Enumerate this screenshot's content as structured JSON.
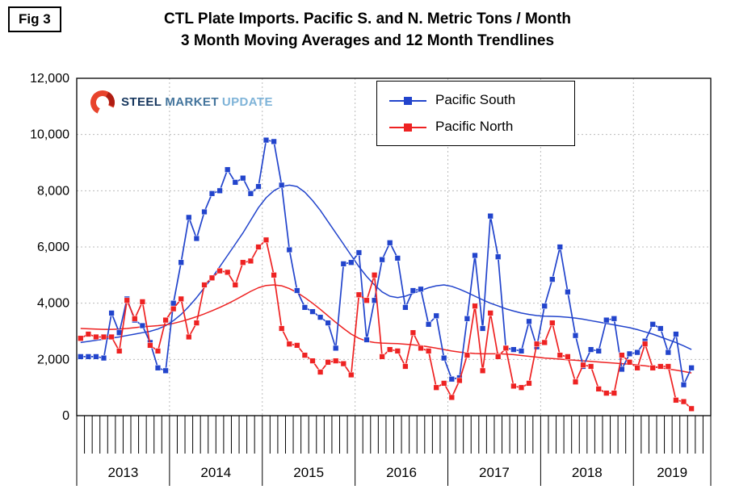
{
  "fig_label": "Fig 3",
  "title_line1": "CTL Plate Imports. Pacific S. and N. Metric Tons / Month",
  "title_line2": "3 Month Moving Averages and 12 Month Trendlines",
  "logo": {
    "steel": "STEEL",
    "market": "MARKET",
    "update": "UPDATE",
    "steel_color": "#17375E",
    "market_color": "#43749c",
    "update_color": "#7EB3D8",
    "icon_color": "#E8432C"
  },
  "chart_data": {
    "type": "line",
    "title": "CTL Plate Imports. Pacific S. and N. Metric Tons / Month",
    "subtitle": "3 Month Moving Averages and 12 Month Trendlines",
    "x_start": "Jan 2013",
    "x_end": "Aug 2019",
    "domain_months": 82,
    "years": [
      "2013",
      "2014",
      "2015",
      "2016",
      "2017",
      "2018",
      "2019"
    ],
    "ylim": [
      0,
      12000
    ],
    "y_tick_values": [
      0,
      2000,
      4000,
      6000,
      8000,
      10000,
      12000
    ],
    "y_tick_labels": [
      "0",
      "2,000",
      "4,000",
      "6,000",
      "8,000",
      "10,000",
      "12,000"
    ],
    "grid": {
      "horizontal": true,
      "vertical_year_lines": true,
      "style": "dotted"
    },
    "legend_position": "top-center",
    "legend": [
      "Pacific South",
      "Pacific North"
    ],
    "series": [
      {
        "name": "Pacific South",
        "kind": "3 month moving average",
        "color": "#2244CC",
        "marker": "square",
        "values": [
          2100,
          2100,
          2100,
          2050,
          3650,
          2950,
          4150,
          3400,
          3200,
          2600,
          1700,
          1600,
          4000,
          5450,
          7050,
          6300,
          7250,
          7900,
          8000,
          8750,
          8300,
          8450,
          7900,
          8150,
          9800,
          9750,
          8200,
          5900,
          4450,
          3850,
          3700,
          3500,
          3300,
          2400,
          5400,
          5450,
          5800,
          2700,
          4100,
          5550,
          6150,
          5600,
          3850,
          4450,
          4500,
          3250,
          3550,
          2050,
          1300,
          1350,
          3450,
          5700,
          3100,
          7100,
          5650,
          2400,
          2350,
          2300,
          3350,
          2450,
          3900,
          4850,
          6000,
          4400,
          2850,
          1750,
          2350,
          2300,
          3400,
          3450,
          1650,
          2200,
          2250,
          2650,
          3250,
          3100,
          2250,
          2900,
          1100,
          1700
        ]
      },
      {
        "name": "Pacific North",
        "kind": "3 month moving average",
        "color": "#EE2222",
        "marker": "square",
        "values": [
          2750,
          2900,
          2800,
          2800,
          2800,
          2300,
          4100,
          3450,
          4050,
          2500,
          2300,
          3400,
          3800,
          4150,
          2800,
          3300,
          4650,
          4900,
          5150,
          5100,
          4650,
          5450,
          5500,
          6000,
          6250,
          5000,
          3100,
          2550,
          2500,
          2150,
          1950,
          1550,
          1900,
          1950,
          1850,
          1450,
          4300,
          4100,
          5000,
          2100,
          2350,
          2300,
          1750,
          2950,
          2400,
          2300,
          1000,
          1150,
          650,
          1250,
          2150,
          3900,
          1600,
          3650,
          2100,
          2400,
          1050,
          1000,
          1150,
          2550,
          2600,
          3300,
          2150,
          2100,
          1200,
          1800,
          1750,
          950,
          800,
          800,
          2150,
          1900,
          1700,
          2550,
          1700,
          1750,
          1750,
          550,
          500,
          250
        ]
      },
      {
        "name": "Pacific South Trendline",
        "kind": "12 month trendline",
        "color": "#2244CC",
        "marker": "none",
        "values": [
          2600,
          2640,
          2680,
          2720,
          2760,
          2800,
          2850,
          2900,
          2950,
          3000,
          3080,
          3200,
          3380,
          3600,
          3880,
          4200,
          4550,
          4900,
          5300,
          5700,
          6100,
          6500,
          6950,
          7400,
          7750,
          8000,
          8150,
          8200,
          8150,
          7950,
          7650,
          7300,
          6900,
          6500,
          6100,
          5700,
          5300,
          4950,
          4650,
          4400,
          4250,
          4200,
          4250,
          4350,
          4450,
          4550,
          4620,
          4650,
          4600,
          4500,
          4380,
          4250,
          4120,
          4000,
          3900,
          3800,
          3720,
          3650,
          3600,
          3560,
          3540,
          3530,
          3520,
          3500,
          3470,
          3430,
          3380,
          3330,
          3280,
          3230,
          3180,
          3130,
          3060,
          2980,
          2900,
          2800,
          2700,
          2600,
          2480,
          2350
        ]
      },
      {
        "name": "Pacific North Trendline",
        "kind": "12 month trendline",
        "color": "#EE2222",
        "marker": "none",
        "values": [
          3100,
          3090,
          3080,
          3070,
          3070,
          3080,
          3100,
          3130,
          3160,
          3180,
          3200,
          3230,
          3280,
          3350,
          3430,
          3520,
          3620,
          3730,
          3850,
          3980,
          4120,
          4270,
          4420,
          4550,
          4630,
          4650,
          4620,
          4520,
          4380,
          4200,
          4000,
          3780,
          3550,
          3320,
          3100,
          2900,
          2750,
          2650,
          2600,
          2580,
          2570,
          2560,
          2540,
          2520,
          2490,
          2450,
          2400,
          2350,
          2300,
          2260,
          2230,
          2210,
          2200,
          2200,
          2200,
          2190,
          2170,
          2140,
          2110,
          2080,
          2050,
          2030,
          2010,
          1990,
          1970,
          1950,
          1930,
          1910,
          1890,
          1870,
          1850,
          1830,
          1800,
          1770,
          1740,
          1700,
          1660,
          1620,
          1570,
          1520
        ]
      }
    ]
  }
}
